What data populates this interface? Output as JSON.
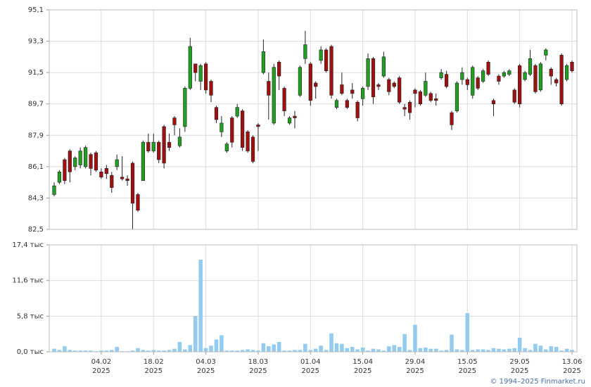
{
  "chart_data": [
    {
      "type": "candlestick",
      "x": [
        "22.01.2025",
        "23.01.2025",
        "24.01.2025",
        "27.01.2025",
        "28.01.2025",
        "29.01.2025",
        "30.01.2025",
        "31.01.2025",
        "03.02.2025",
        "04.02.2025",
        "05.02.2025",
        "06.02.2025",
        "07.02.2025",
        "10.02.2025",
        "11.02.2025",
        "12.02.2025",
        "13.02.2025",
        "14.02.2025",
        "17.02.2025",
        "18.02.2025",
        "19.02.2025",
        "20.02.2025",
        "21.02.2025",
        "24.02.2025",
        "25.02.2025",
        "26.02.2025",
        "27.02.2025",
        "28.02.2025",
        "03.03.2025",
        "04.03.2025",
        "05.03.2025",
        "06.03.2025",
        "07.03.2025",
        "10.03.2025",
        "11.03.2025",
        "12.03.2025",
        "13.03.2025",
        "14.03.2025",
        "17.03.2025",
        "18.03.2025",
        "19.03.2025",
        "20.03.2025",
        "21.03.2025",
        "24.03.2025",
        "25.03.2025",
        "26.03.2025",
        "27.03.2025",
        "28.03.2025",
        "31.03.2025",
        "01.04.2025",
        "02.04.2025",
        "03.04.2025",
        "04.04.2025",
        "07.04.2025",
        "08.04.2025",
        "09.04.2025",
        "10.04.2025",
        "11.04.2025",
        "14.04.2025",
        "15.04.2025",
        "16.04.2025",
        "17.04.2025",
        "18.04.2025",
        "21.04.2025",
        "22.04.2025",
        "23.04.2025",
        "24.04.2025",
        "25.04.2025",
        "28.04.2025",
        "29.04.2025",
        "30.04.2025",
        "02.05.2025",
        "05.05.2025",
        "06.05.2025",
        "07.05.2025",
        "08.05.2025",
        "12.05.2025",
        "13.05.2025",
        "14.05.2025",
        "15.05.2025",
        "16.05.2025",
        "19.05.2025",
        "20.05.2025",
        "21.05.2025",
        "22.05.2025",
        "23.05.2025",
        "26.05.2025",
        "27.05.2025",
        "28.05.2025",
        "29.05.2025",
        "30.05.2025",
        "02.06.2025",
        "03.06.2025",
        "04.06.2025",
        "05.06.2025",
        "06.06.2025",
        "09.06.2025",
        "10.06.2025",
        "11.06.2025",
        "13.06.2025"
      ],
      "open": [
        84.5,
        85.2,
        86.5,
        87.0,
        86.1,
        86.2,
        86.1,
        86.8,
        86.9,
        85.8,
        86.0,
        85.6,
        86.1,
        85.5,
        85.4,
        86.3,
        84.5,
        85.3,
        87.5,
        87.0,
        87.5,
        88.4,
        87.5,
        88.9,
        87.3,
        88.4,
        90.6,
        92.0,
        91.0,
        92.0,
        91.0,
        89.5,
        88.1,
        87.0,
        88.9,
        89.0,
        89.3,
        88.1,
        87.8,
        88.5,
        91.5,
        91.0,
        88.6,
        92.1,
        90.6,
        88.6,
        89.0,
        90.2,
        92.3,
        92.0,
        90.9,
        92.2,
        92.8,
        93.0,
        89.5,
        90.8,
        89.9,
        90.5,
        89.8,
        90.0,
        90.7,
        92.3,
        90.8,
        91.3,
        91.1,
        90.9,
        91.2,
        89.5,
        89.8,
        90.5,
        90.4,
        90.2,
        90.3,
        90.0,
        91.2,
        91.4,
        89.2,
        89.3,
        91.1,
        91.1,
        90.2,
        91.2,
        91.0,
        92.1,
        89.9,
        91.3,
        91.3,
        91.4,
        90.5,
        91.9,
        91.1,
        91.4,
        91.9,
        90.5,
        92.5,
        91.7,
        91.1,
        92.5,
        91.1,
        92.1
      ],
      "high": [
        85.2,
        85.9,
        86.6,
        87.1,
        86.7,
        87.2,
        87.3,
        86.9,
        87.0,
        86.0,
        86.2,
        85.8,
        86.8,
        86.7,
        85.6,
        86.4,
        84.6,
        87.6,
        88.0,
        88.0,
        87.6,
        88.5,
        88.0,
        89.0,
        88.3,
        90.7,
        93.5,
        92.0,
        92.0,
        92.1,
        91.1,
        89.6,
        89.0,
        87.5,
        89.0,
        89.7,
        89.4,
        88.2,
        87.9,
        88.6,
        93.4,
        91.5,
        92.0,
        92.2,
        90.7,
        89.0,
        89.3,
        91.9,
        93.9,
        92.1,
        91.0,
        93.0,
        92.9,
        93.1,
        90.0,
        91.5,
        90.0,
        90.9,
        89.9,
        90.7,
        92.6,
        92.4,
        90.9,
        92.7,
        91.2,
        91.0,
        91.3,
        89.7,
        89.9,
        90.6,
        90.5,
        91.5,
        90.4,
        90.3,
        91.7,
        91.6,
        89.3,
        91.0,
        91.8,
        91.2,
        91.9,
        91.3,
        91.7,
        92.2,
        90.0,
        91.4,
        91.6,
        91.7,
        90.6,
        92.0,
        91.6,
        92.8,
        92.0,
        92.1,
        92.9,
        91.8,
        91.2,
        92.6,
        92.0,
        92.2
      ],
      "low": [
        84.4,
        85.1,
        85.1,
        85.2,
        85.9,
        86.0,
        86.0,
        85.6,
        85.8,
        85.4,
        85.4,
        84.6,
        85.9,
        85.3,
        85.0,
        82.5,
        83.5,
        85.3,
        86.9,
        86.9,
        86.3,
        86.0,
        87.0,
        87.9,
        87.2,
        88.1,
        90.5,
        91.0,
        90.5,
        90.3,
        89.8,
        88.6,
        87.8,
        86.9,
        87.2,
        88.9,
        87.0,
        86.9,
        86.3,
        87.0,
        91.4,
        88.8,
        88.5,
        90.5,
        89.0,
        88.5,
        88.3,
        90.1,
        92.0,
        89.6,
        90.0,
        92.0,
        91.5,
        90.0,
        89.4,
        90.2,
        89.4,
        90.0,
        88.7,
        89.6,
        90.5,
        89.7,
        90.5,
        91.2,
        90.2,
        90.6,
        89.7,
        89.0,
        88.8,
        89.5,
        89.6,
        90.1,
        89.8,
        89.6,
        91.1,
        90.6,
        88.2,
        89.2,
        90.8,
        90.5,
        90.0,
        90.5,
        90.9,
        91.3,
        89.0,
        90.8,
        91.2,
        91.3,
        89.7,
        89.5,
        91.0,
        91.3,
        90.3,
        90.4,
        92.2,
        90.8,
        90.7,
        89.6,
        91.0,
        91.5
      ],
      "close": [
        85.0,
        85.8,
        85.3,
        85.8,
        86.6,
        87.0,
        87.2,
        86.0,
        85.9,
        85.5,
        85.7,
        84.9,
        86.5,
        85.4,
        85.3,
        84.0,
        83.6,
        87.5,
        87.0,
        87.5,
        86.5,
        86.3,
        87.2,
        88.5,
        87.8,
        90.6,
        93.0,
        91.5,
        91.9,
        90.5,
        90.2,
        88.8,
        88.6,
        87.4,
        87.5,
        89.5,
        87.2,
        87.0,
        86.4,
        88.4,
        92.7,
        90.2,
        91.8,
        91.3,
        89.3,
        88.9,
        88.9,
        91.8,
        93.1,
        89.9,
        90.7,
        92.8,
        91.6,
        90.2,
        89.9,
        90.3,
        89.5,
        90.3,
        88.9,
        90.6,
        92.3,
        90.1,
        90.7,
        92.4,
        90.4,
        90.7,
        89.8,
        89.4,
        89.2,
        90.3,
        89.7,
        91.0,
        89.9,
        89.9,
        91.5,
        90.7,
        88.5,
        90.9,
        91.5,
        90.8,
        91.8,
        90.6,
        91.6,
        91.4,
        89.7,
        91.0,
        91.5,
        91.6,
        89.8,
        89.7,
        91.5,
        92.3,
        90.4,
        92.0,
        92.8,
        91.3,
        90.9,
        89.7,
        91.9,
        91.6
      ],
      "up_color": "#20a020",
      "down_color": "#a01010",
      "ylim": [
        82.5,
        95.1
      ],
      "yticks": [
        {
          "value": 82.5,
          "label": "82,5"
        },
        {
          "value": 84.3,
          "label": "84,3"
        },
        {
          "value": 86.1,
          "label": "86,1"
        },
        {
          "value": 87.9,
          "label": "87,9"
        },
        {
          "value": 89.7,
          "label": "89,7"
        },
        {
          "value": 91.5,
          "label": "91,5"
        },
        {
          "value": 93.3,
          "label": "93,3"
        },
        {
          "value": 95.1,
          "label": "95,1"
        }
      ],
      "grid": true
    },
    {
      "type": "bar",
      "values": [
        0.5,
        0.3,
        0.9,
        0.3,
        0.2,
        0.2,
        0.2,
        0.2,
        0.1,
        0.2,
        0.2,
        0.3,
        0.8,
        0.1,
        0.1,
        0.2,
        0.6,
        0.3,
        0.2,
        0.3,
        0.2,
        0.2,
        0.3,
        0.5,
        1.6,
        0.4,
        1.1,
        5.8,
        15.0,
        0.6,
        1.0,
        2.0,
        2.7,
        0.2,
        0.2,
        0.2,
        0.3,
        0.4,
        0.3,
        0.2,
        1.4,
        0.9,
        1.2,
        1.6,
        0.2,
        0.2,
        0.3,
        0.3,
        1.3,
        0.3,
        0.5,
        1.0,
        0.3,
        3.0,
        1.4,
        1.3,
        0.6,
        0.8,
        0.4,
        0.7,
        0.2,
        0.5,
        0.4,
        0.2,
        0.9,
        1.1,
        0.8,
        2.9,
        0.3,
        4.4,
        0.6,
        0.7,
        0.5,
        0.5,
        0.2,
        0.3,
        2.8,
        0.4,
        0.3,
        6.3,
        0.3,
        0.4,
        0.4,
        0.3,
        0.6,
        0.5,
        0.4,
        0.5,
        0.6,
        2.3,
        0.6,
        0.3,
        1.3,
        1.0,
        0.4,
        0.9,
        0.8,
        0.2,
        0.5,
        0.3
      ],
      "color": "#93cbf1",
      "ylim": [
        0,
        17.4
      ],
      "yticks": [
        {
          "value": 0,
          "label": "0,0 тыс"
        },
        {
          "value": 5.8,
          "label": "5,8 тыс"
        },
        {
          "value": 11.6,
          "label": "11,6 тыс"
        },
        {
          "value": 17.4,
          "label": "17,4 тыс"
        }
      ],
      "xticks": [
        {
          "value": "04.02.2025",
          "label": [
            "04.02",
            "2025"
          ]
        },
        {
          "value": "18.02.2025",
          "label": [
            "18.02",
            "2025"
          ]
        },
        {
          "value": "04.03.2025",
          "label": [
            "04.03",
            "2025"
          ]
        },
        {
          "value": "18.03.2025",
          "label": [
            "18.03",
            "2025"
          ]
        },
        {
          "value": "01.04.2025",
          "label": [
            "01.04",
            "2025"
          ]
        },
        {
          "value": "15.04.2025",
          "label": [
            "15.04",
            "2025"
          ]
        },
        {
          "value": "29.04.2025",
          "label": [
            "29.04",
            "2025"
          ]
        },
        {
          "value": "15.05.2025",
          "label": [
            "15.05",
            "2025"
          ]
        },
        {
          "value": "29.05.2025",
          "label": [
            "29.05",
            "2025"
          ]
        },
        {
          "value": "13.06.2025",
          "label": [
            "13.06",
            "2025"
          ]
        }
      ],
      "grid": true
    }
  ],
  "footer": "© 1994–2025 Finmarket.ru"
}
